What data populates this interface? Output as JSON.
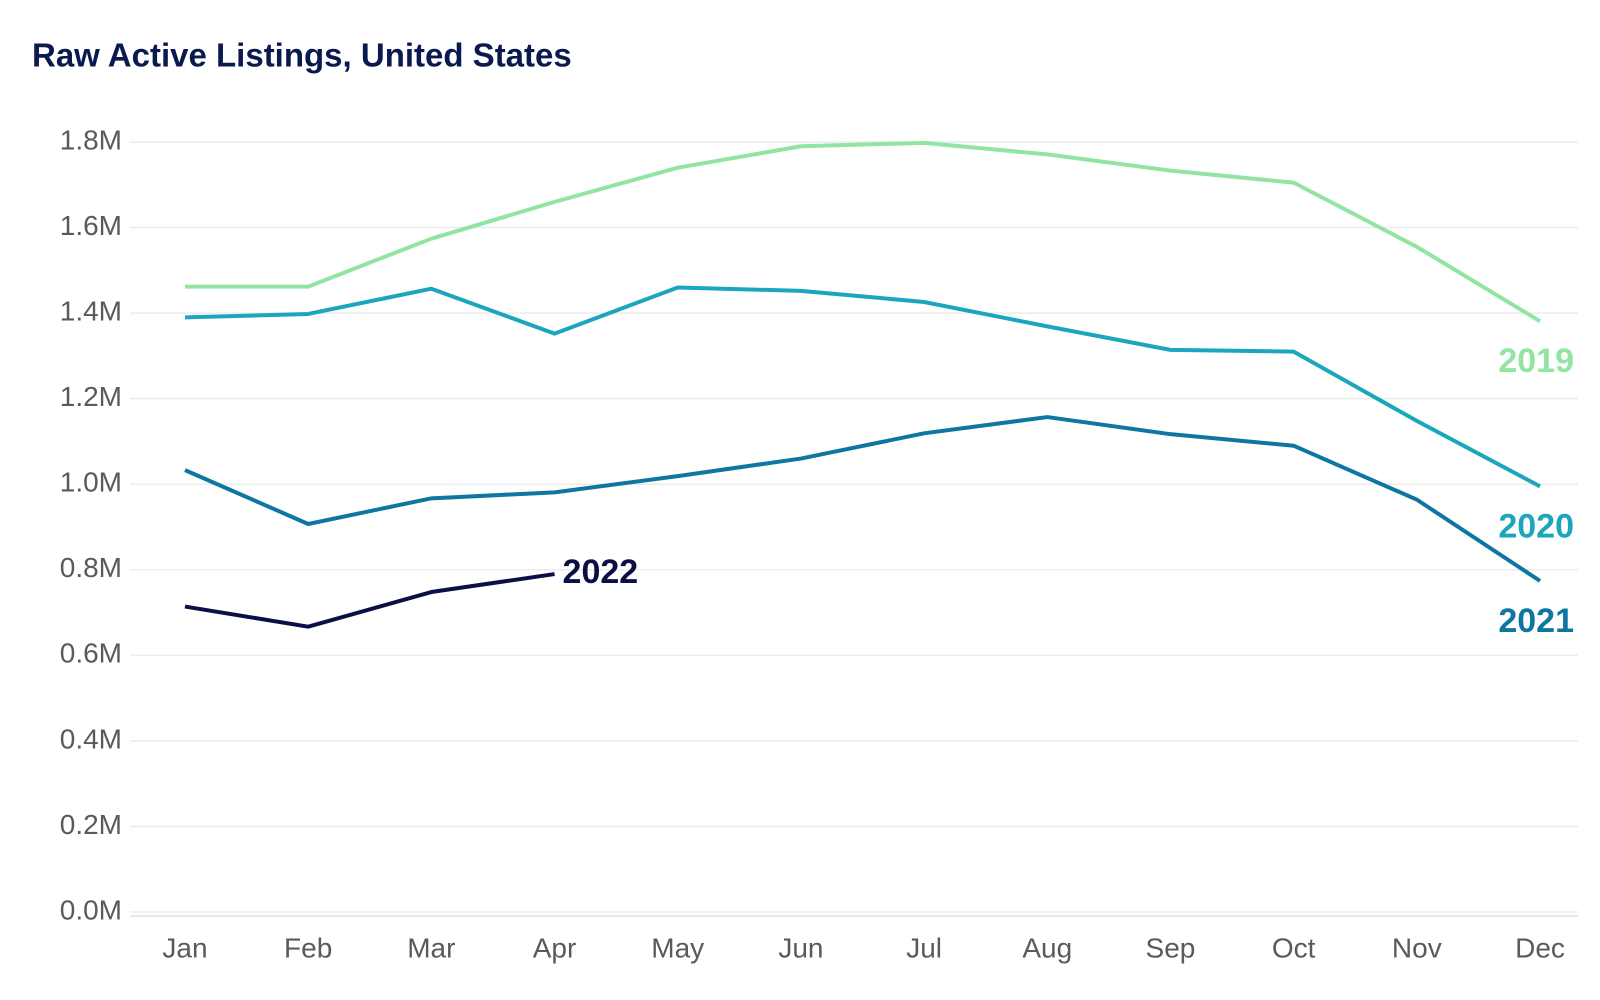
{
  "chart_data": {
    "type": "line",
    "title": "Raw Active Listings, United States",
    "categories": [
      "Jan",
      "Feb",
      "Mar",
      "Apr",
      "May",
      "Jun",
      "Jul",
      "Aug",
      "Sep",
      "Oct",
      "Nov",
      "Dec"
    ],
    "series": [
      {
        "name": "2019",
        "color": "#92e5a1",
        "values": [
          1462000,
          1462000,
          1574000,
          1660000,
          1740000,
          1790000,
          1798000,
          1771000,
          1733000,
          1705000,
          1555000,
          1381000
        ]
      },
      {
        "name": "2020",
        "color": "#1ba6bd",
        "values": [
          1390000,
          1398000,
          1457000,
          1352000,
          1460000,
          1452000,
          1426000,
          1369000,
          1314000,
          1310000,
          1148000,
          995000
        ]
      },
      {
        "name": "2021",
        "color": "#0d77a1",
        "values": [
          1033000,
          907000,
          967000,
          981000,
          1019000,
          1060000,
          1119000,
          1157000,
          1117000,
          1090000,
          964000,
          774000
        ]
      },
      {
        "name": "2022",
        "color": "#0c0f45",
        "values": [
          714000,
          667000,
          748000,
          790000,
          null,
          null,
          null,
          null,
          null,
          null,
          null,
          null
        ]
      }
    ],
    "ylim": [
      0,
      1800000
    ],
    "yticks": [
      {
        "value": 0,
        "label": "0.0M"
      },
      {
        "value": 200000,
        "label": "0.2M"
      },
      {
        "value": 400000,
        "label": "0.4M"
      },
      {
        "value": 600000,
        "label": "0.6M"
      },
      {
        "value": 800000,
        "label": "0.8M"
      },
      {
        "value": 1000000,
        "label": "1.0M"
      },
      {
        "value": 1200000,
        "label": "1.2M"
      },
      {
        "value": 1400000,
        "label": "1.4M"
      },
      {
        "value": 1600000,
        "label": "1.6M"
      },
      {
        "value": 1800000,
        "label": "1.8M"
      }
    ],
    "grid": true
  }
}
